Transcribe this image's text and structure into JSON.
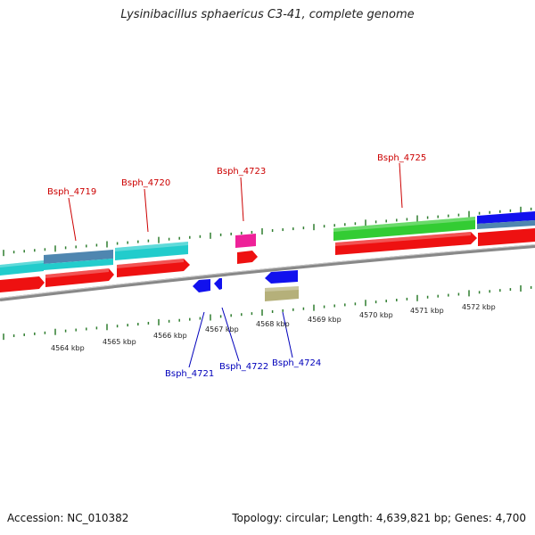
{
  "title": "Lysinibacillus sphaericus C3-41, complete genome",
  "footer": {
    "accession": "Accession: NC_010382",
    "summary": "Topology: circular; Length: 4,639,821 bp; Genes: 4,700"
  },
  "colors": {
    "backbone": "#8a8a8a",
    "tick": "#2f7d2f",
    "top_label": "#cc0000",
    "bottom_label": "#0000bb",
    "cds_red": "#ee1111",
    "cyan": "#22cccc",
    "steelblue": "#4f86b0",
    "green": "#33cc33",
    "blue": "#1111ee",
    "pink": "#ee2299",
    "khaki": "#b5b07a"
  },
  "scale_labels": [
    "4564 kbp",
    "4565 kbp",
    "4566 kbp",
    "4567 kbp",
    "4568 kbp",
    "4569 kbp",
    "4570 kbp",
    "4571 kbp",
    "4572 kbp"
  ],
  "genes_top": [
    {
      "name": "Bsph_4719"
    },
    {
      "name": "Bsph_4720"
    },
    {
      "name": "Bsph_4723"
    },
    {
      "name": "Bsph_4725"
    }
  ],
  "genes_bottom": [
    {
      "name": "Bsph_4721"
    },
    {
      "name": "Bsph_4722"
    },
    {
      "name": "Bsph_4724"
    }
  ]
}
